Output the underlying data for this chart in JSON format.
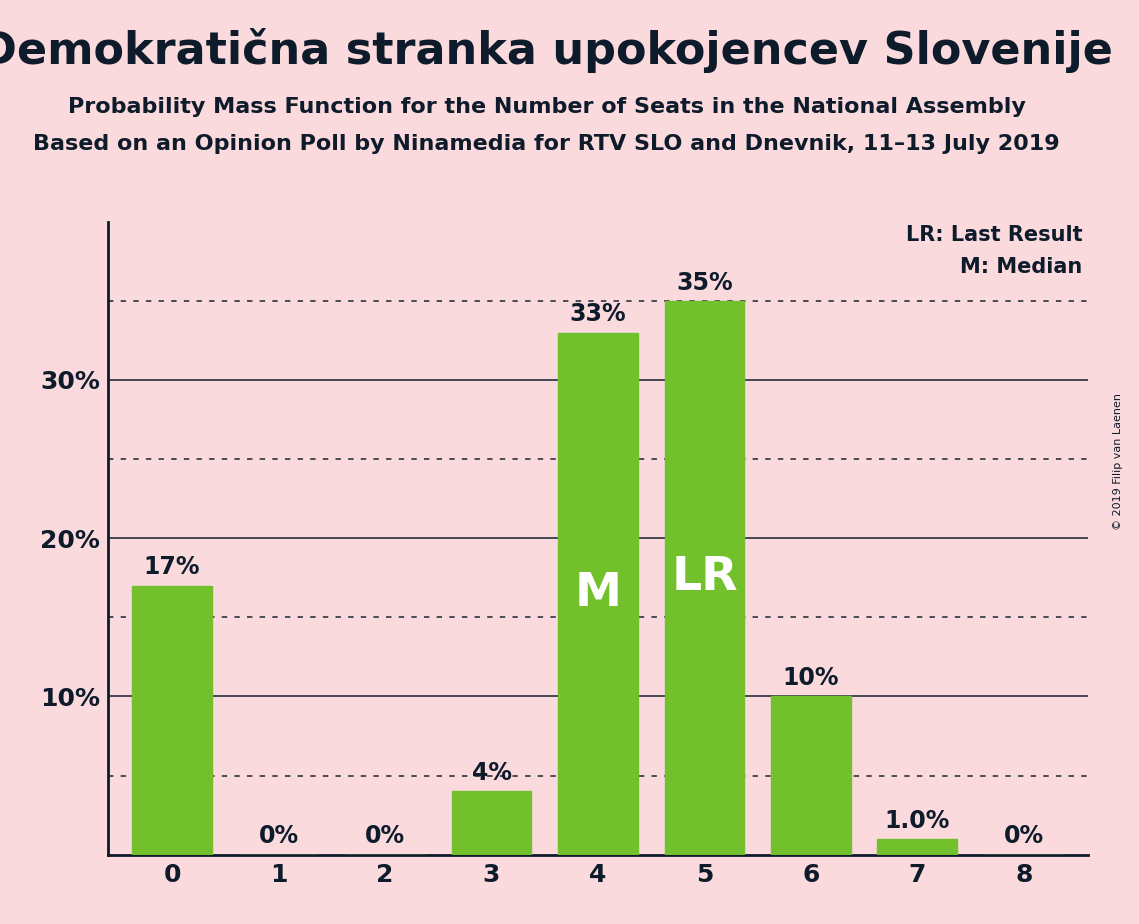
{
  "title": "Demokratična stranka upokojencev Slovenije",
  "subtitle1": "Probability Mass Function for the Number of Seats in the National Assembly",
  "subtitle2": "Based on an Opinion Poll by Ninamedia for RTV SLO and Dnevnik, 11–13 July 2019",
  "copyright": "© 2019 Filip van Laenen",
  "categories": [
    0,
    1,
    2,
    3,
    4,
    5,
    6,
    7,
    8
  ],
  "values": [
    0.17,
    0.0,
    0.0,
    0.04,
    0.33,
    0.35,
    0.1,
    0.01,
    0.0
  ],
  "bar_labels": [
    "17%",
    "0%",
    "0%",
    "4%",
    "33%",
    "35%",
    "10%",
    "1.0%",
    "0%"
  ],
  "bar_color": "#72c02c",
  "background_color": "#fadadd",
  "text_color": "#0d1b2a",
  "median_bar": 4,
  "lr_bar": 5,
  "median_label": "M",
  "lr_label": "LR",
  "legend_lr": "LR: Last Result",
  "legend_m": "M: Median",
  "ylim": [
    0,
    0.4
  ],
  "yticks": [
    0.1,
    0.2,
    0.3
  ],
  "ytick_labels": [
    "10%",
    "20%",
    "30%"
  ],
  "solid_lines": [
    0.1,
    0.2,
    0.3
  ],
  "dotted_lines": [
    0.05,
    0.15,
    0.25,
    0.35
  ],
  "bar_label_fontsize": 17,
  "inner_label_fontsize": 34,
  "title_fontsize": 32,
  "subtitle1_fontsize": 16,
  "subtitle2_fontsize": 16,
  "axis_tick_fontsize": 18,
  "legend_fontsize": 15,
  "copyright_fontsize": 8
}
